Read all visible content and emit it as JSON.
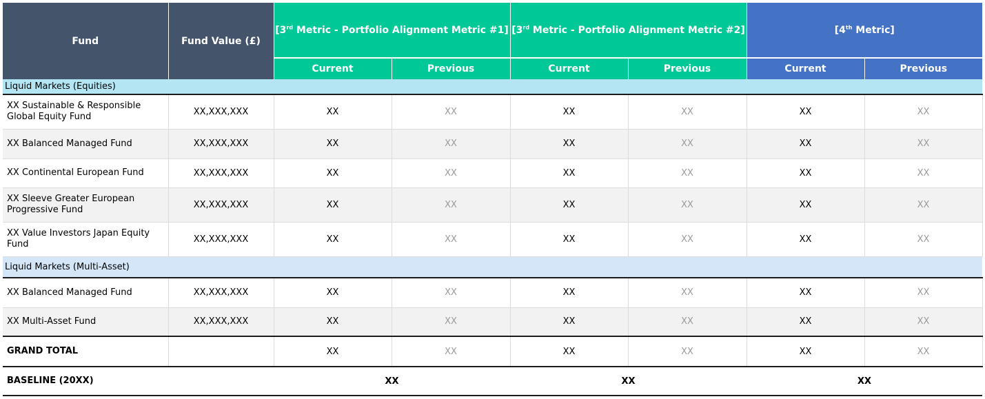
{
  "header": {
    "fund": "Fund",
    "fund_value": "Fund Value (£)",
    "metric1_pre": "[3",
    "metric1_sup": "rd",
    "metric1_post": " Metric - Portfolio Alignment Metric #1]",
    "metric2_pre": "[3",
    "metric2_sup": "rd",
    "metric2_post": " Metric - Portfolio Alignment Metric #2]",
    "metric3_pre": "[4",
    "metric3_sup": "th",
    "metric3_post": " Metric]",
    "current": "Current",
    "previous": "Previous"
  },
  "sections": [
    {
      "label": "Liquid  Markets (Equities)",
      "rows": [
        {
          "fund": "XX Sustainable & Responsible Global Equity Fund",
          "value": "XX,XXX,XXX",
          "m1c": "XX",
          "m1p": "XX",
          "m2c": "XX",
          "m2p": "XX",
          "m3c": "XX",
          "m3p": "XX"
        },
        {
          "fund": "XX Balanced Managed Fund",
          "value": "XX,XXX,XXX",
          "m1c": "XX",
          "m1p": "XX",
          "m2c": "XX",
          "m2p": "XX",
          "m3c": "XX",
          "m3p": "XX"
        },
        {
          "fund": "XX Continental European Fund",
          "value": "XX,XXX,XXX",
          "m1c": "XX",
          "m1p": "XX",
          "m2c": "XX",
          "m2p": "XX",
          "m3c": "XX",
          "m3p": "XX"
        },
        {
          "fund": "XX Sleeve Greater European Progressive Fund",
          "value": "XX,XXX,XXX",
          "m1c": "XX",
          "m1p": "XX",
          "m2c": "XX",
          "m2p": "XX",
          "m3c": "XX",
          "m3p": "XX"
        },
        {
          "fund": "XX Value Investors Japan Equity Fund",
          "value": "XX,XXX,XXX",
          "m1c": "XX",
          "m1p": "XX",
          "m2c": "XX",
          "m2p": "XX",
          "m3c": "XX",
          "m3p": "XX"
        }
      ]
    },
    {
      "label": "Liquid  Markets (Multi-Asset)",
      "rows": [
        {
          "fund": "XX Balanced Managed Fund",
          "value": "XX,XXX,XXX",
          "m1c": "XX",
          "m1p": "XX",
          "m2c": "XX",
          "m2p": "XX",
          "m3c": "XX",
          "m3p": "XX"
        },
        {
          "fund": "XX Multi-Asset Fund",
          "value": "XX,XXX,XXX",
          "m1c": "XX",
          "m1p": "XX",
          "m2c": "XX",
          "m2p": "XX",
          "m3c": "XX",
          "m3p": "XX"
        }
      ]
    }
  ],
  "grand_total": {
    "label": "GRAND TOTAL",
    "value": "",
    "m1c": "XX",
    "m1p": "XX",
    "m2c": "XX",
    "m2p": "XX",
    "m3c": "XX",
    "m3p": "XX"
  },
  "baseline": {
    "label": "BASELINE (20XX)",
    "m1": "XX",
    "m2": "XX",
    "m3": "XX"
  },
  "colors": {
    "header_dark": "#44546a",
    "header_green": "#00c896",
    "header_blue": "#4472c4",
    "section_equities": "#b3e6f2",
    "section_multi": "#d4e6f7"
  }
}
